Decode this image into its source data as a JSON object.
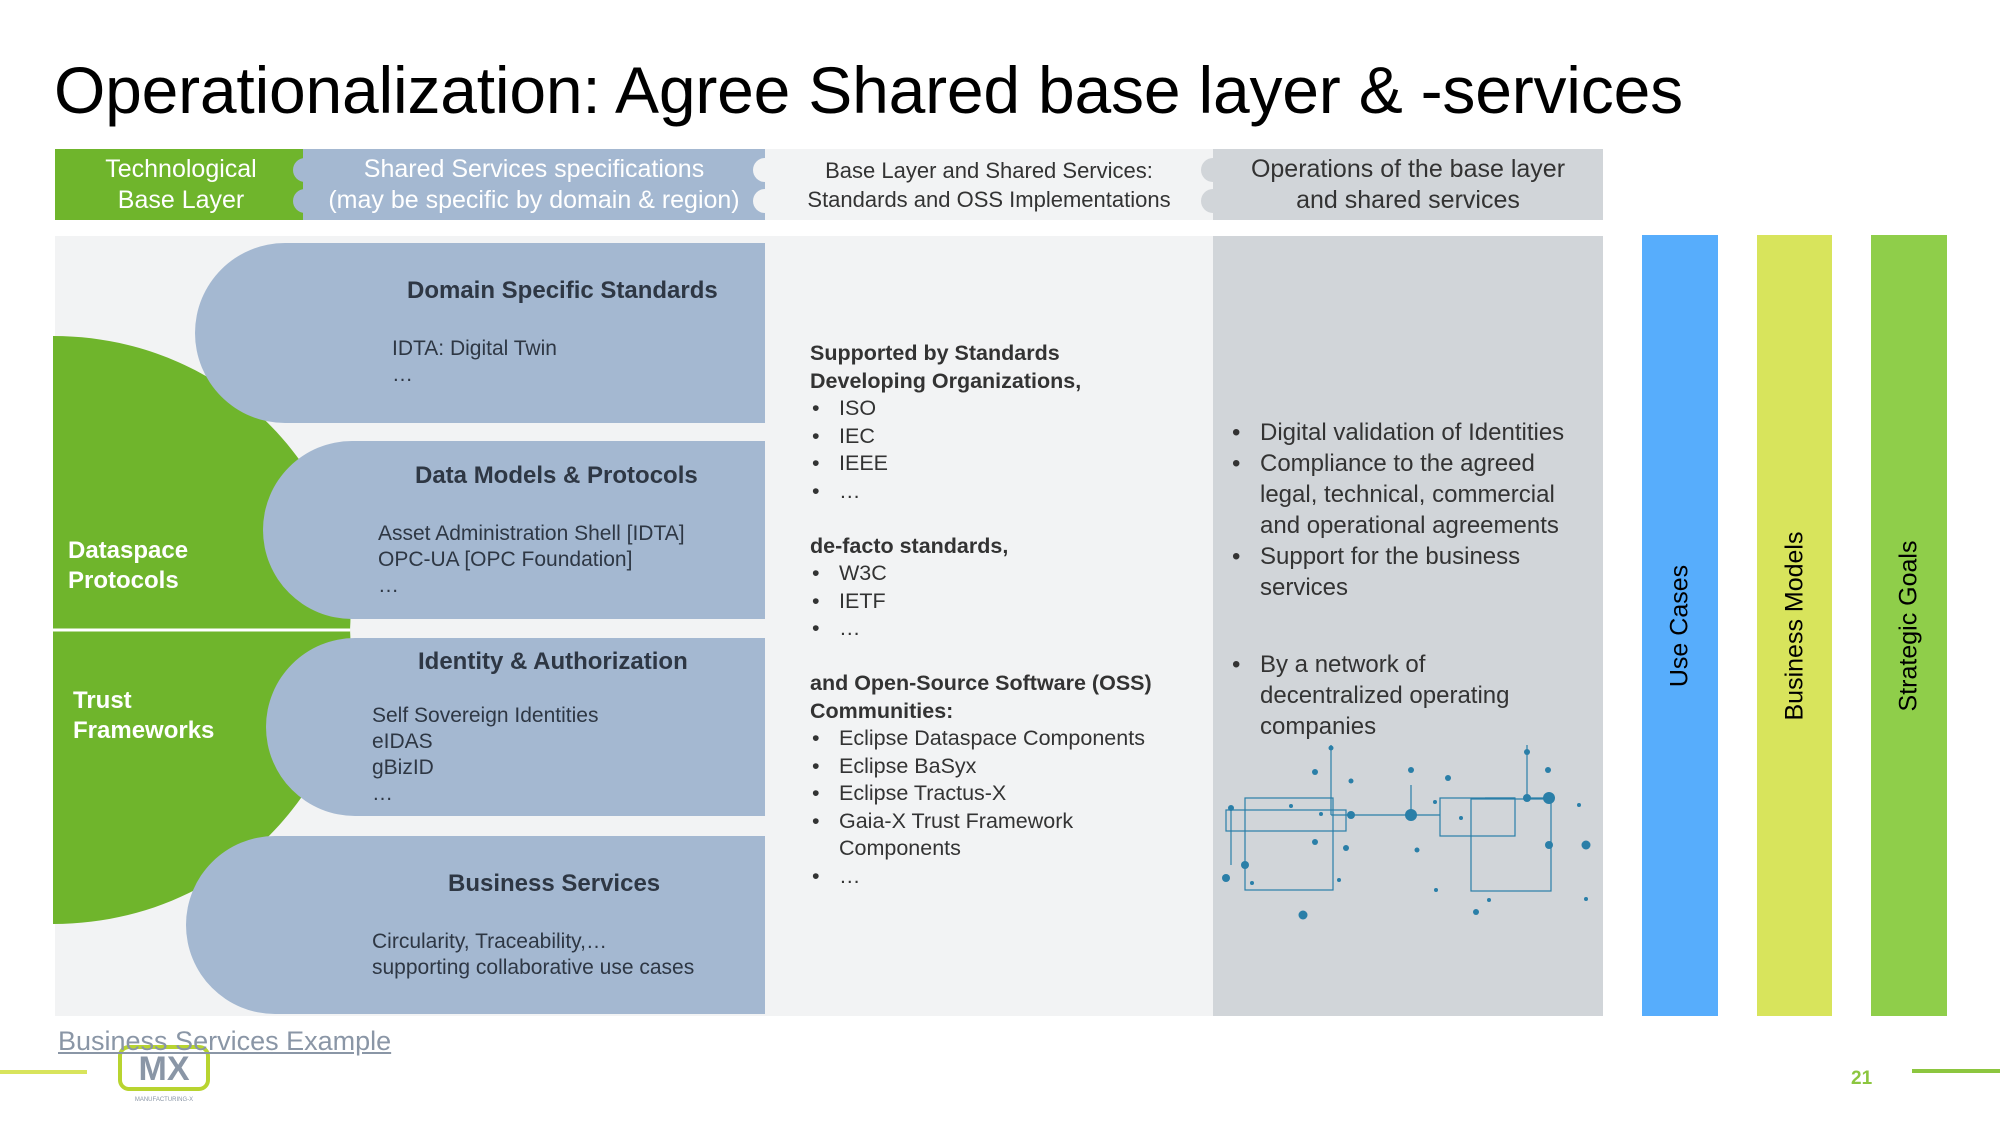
{
  "title": "Operationalization: Agree Shared base layer & -services",
  "header": {
    "col1": "Technological\nBase Layer",
    "col2": "Shared Services specifications\n(may be specific by domain & region)",
    "col3": "Base Layer and Shared Services:\nStandards and OSS Implementations",
    "col4": "Operations of the base layer\nand shared services"
  },
  "green_labels": {
    "dataspace": "Dataspace\nProtocols",
    "trust": "Trust\nFrameworks"
  },
  "boxes": [
    {
      "title": "Domain Specific Standards",
      "text": "IDTA: Digital Twin\n…"
    },
    {
      "title": "Data Models & Protocols",
      "text": "Asset Administration Shell [IDTA]\nOPC-UA [OPC Foundation]\n…"
    },
    {
      "title": "Identity & Authorization",
      "text": "Self Sovereign Identities\neIDAS\ngBizID\n…"
    },
    {
      "title": "Business Services",
      "text": "Circularity, Traceability,…\nsupporting collaborative use cases"
    }
  ],
  "column3": {
    "sdo_heading_1": "Supported by Standards",
    "sdo_heading_2": "Developing Organizations,",
    "sdo_items": [
      "ISO",
      "IEC",
      "IEEE",
      "…"
    ],
    "defacto_heading": "de-facto standards,",
    "defacto_items": [
      "W3C",
      "IETF",
      "…"
    ],
    "oss_heading_1": "and Open-Source Software (OSS)",
    "oss_heading_2": "Communities:",
    "oss_items": [
      "Eclipse Dataspace Components",
      "Eclipse BaSyx",
      "Eclipse Tractus-X",
      "Gaia-X Trust Framework Components",
      "…"
    ]
  },
  "column4": {
    "items": [
      "Digital validation of Identities",
      "Compliance to the agreed legal, technical, commercial and operational agreements",
      "Support for the business services"
    ],
    "items2": [
      "By a network of decentralized operating companies"
    ]
  },
  "side_bars": [
    "Use Cases",
    "Business Models",
    "Strategic Goals"
  ],
  "colors": {
    "green": "#6fb52c",
    "blue_grey": "#a4b8d1",
    "use_cases": "#57adfc",
    "business_models": "#d8e45c",
    "strategic_goals": "#8fce4a",
    "network": "#2a7fa8"
  },
  "footer": {
    "link": "Business Services Example",
    "logo_text": "MX",
    "logo_subtitle": "MANUFACTURING-X",
    "page_number": "21"
  }
}
